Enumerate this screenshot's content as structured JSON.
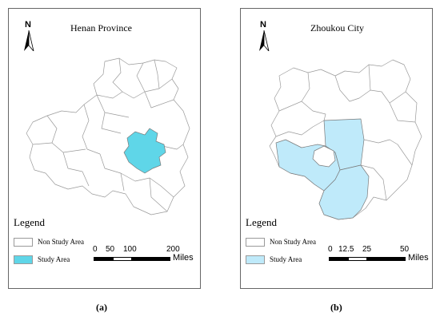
{
  "colors": {
    "non_study_fill": "#ffffff",
    "study_a_fill": "#5fd6e8",
    "study_b_fill": "#bfeafa",
    "border": "#9a9a9a"
  },
  "panel_a": {
    "title": "Henan Province",
    "north_label": "N",
    "legend": {
      "title": "Legend",
      "non_study": "Non Study Area",
      "study": "Study Area"
    },
    "scale": {
      "ticks": [
        "0",
        "50",
        "100",
        "200"
      ],
      "unit": "Miles"
    },
    "caption_open": "(",
    "caption_letter": "a",
    "caption_close": ")"
  },
  "panel_b": {
    "title": "Zhoukou City",
    "north_label": "N",
    "legend": {
      "title": "Legend",
      "non_study": "Non Study Area",
      "study": "Study Area"
    },
    "scale": {
      "ticks": [
        "0",
        "12.5",
        "25",
        "50"
      ],
      "unit": "Miles"
    },
    "caption_open": "(",
    "caption_letter": "b",
    "caption_close": ")"
  }
}
